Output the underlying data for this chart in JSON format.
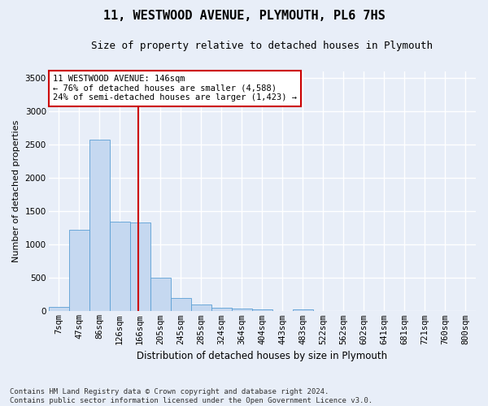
{
  "title": "11, WESTWOOD AVENUE, PLYMOUTH, PL6 7HS",
  "subtitle": "Size of property relative to detached houses in Plymouth",
  "xlabel": "Distribution of detached houses by size in Plymouth",
  "ylabel": "Number of detached properties",
  "categories": [
    "7sqm",
    "47sqm",
    "86sqm",
    "126sqm",
    "166sqm",
    "205sqm",
    "245sqm",
    "285sqm",
    "324sqm",
    "364sqm",
    "404sqm",
    "443sqm",
    "483sqm",
    "522sqm",
    "562sqm",
    "602sqm",
    "641sqm",
    "681sqm",
    "721sqm",
    "760sqm",
    "800sqm"
  ],
  "bar_heights": [
    60,
    1220,
    2580,
    1340,
    1330,
    500,
    195,
    105,
    50,
    45,
    30,
    0,
    30,
    0,
    0,
    0,
    0,
    0,
    0,
    0,
    0
  ],
  "bar_color": "#c5d8f0",
  "bar_edge_color": "#5a9fd4",
  "property_line_x": 3.9,
  "property_line_color": "#cc0000",
  "annotation_text": "11 WESTWOOD AVENUE: 146sqm\n← 76% of detached houses are smaller (4,588)\n24% of semi-detached houses are larger (1,423) →",
  "annotation_box_color": "#cc0000",
  "ylim": [
    0,
    3600
  ],
  "yticks": [
    0,
    500,
    1000,
    1500,
    2000,
    2500,
    3000,
    3500
  ],
  "footer": "Contains HM Land Registry data © Crown copyright and database right 2024.\nContains public sector information licensed under the Open Government Licence v3.0.",
  "bg_color": "#e8eef8",
  "plot_bg_color": "#e8eef8",
  "grid_color": "#ffffff",
  "title_fontsize": 11,
  "subtitle_fontsize": 9,
  "ylabel_fontsize": 8,
  "xlabel_fontsize": 8.5,
  "tick_fontsize": 7.5,
  "annotation_fontsize": 7.5,
  "footer_fontsize": 6.5
}
